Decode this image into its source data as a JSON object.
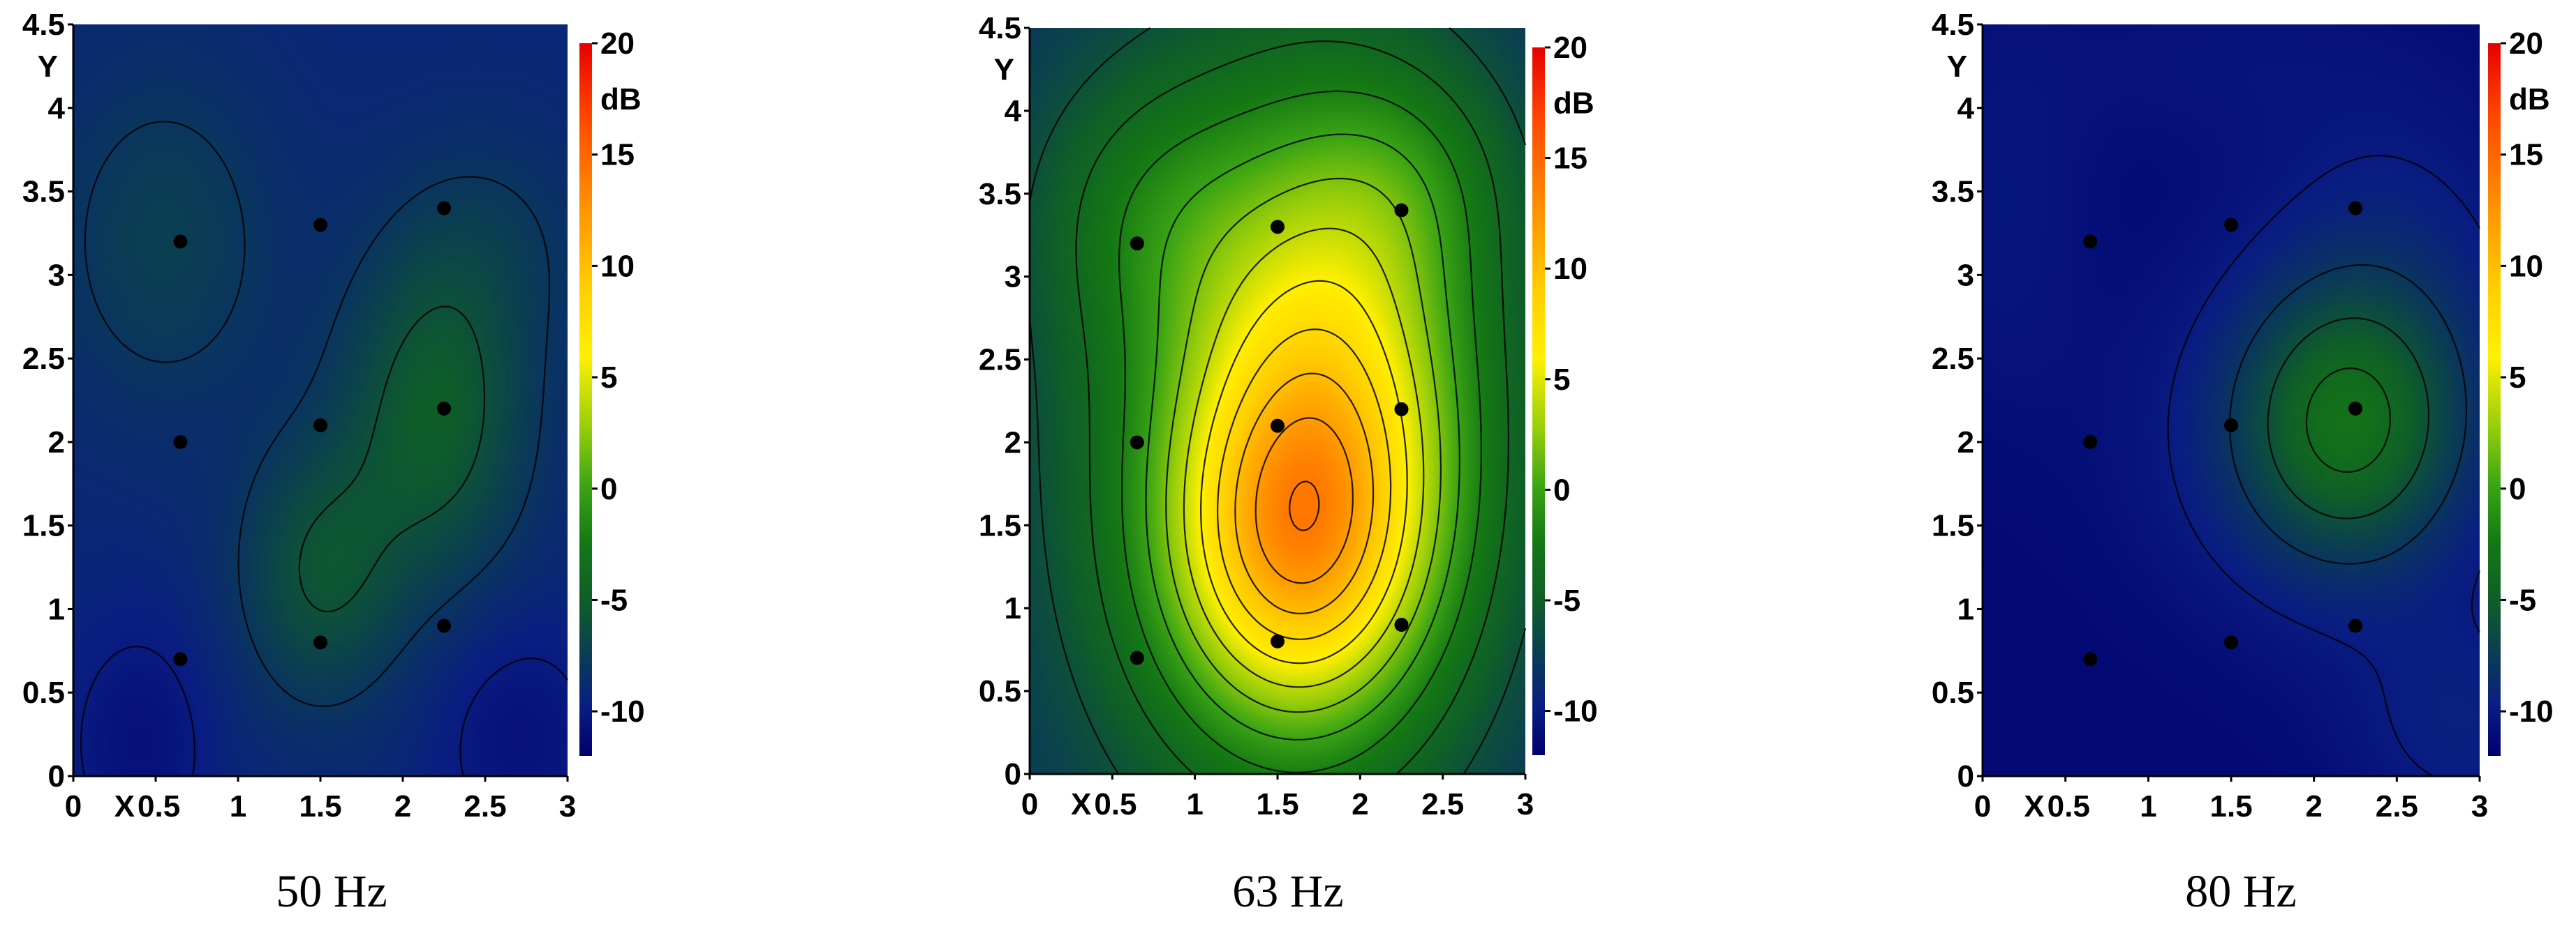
{
  "chart_data": [
    {
      "type": "heatmap",
      "title": "",
      "caption": "50 Hz",
      "xlabel": "X",
      "ylabel": "Y",
      "colorbar_label": "dB",
      "xlim": [
        0,
        3
      ],
      "ylim": [
        0,
        4.5
      ],
      "x_ticks": [
        "0",
        "0.5",
        "1",
        "1.5",
        "2",
        "2.5",
        "3"
      ],
      "y_ticks": [
        "0",
        "0.5",
        "1",
        "1.5",
        "2",
        "2.5",
        "3",
        "3.5",
        "4",
        "4.5"
      ],
      "colorbar_range": [
        -12,
        20
      ],
      "colorbar_ticks": [
        "-10",
        "-5",
        "0",
        "5",
        "10",
        "15",
        "20"
      ],
      "contour_interval_db": 2,
      "measurement_points": [
        {
          "x": 0.65,
          "y": 3.2
        },
        {
          "x": 1.5,
          "y": 3.3
        },
        {
          "x": 2.25,
          "y": 3.4
        },
        {
          "x": 0.65,
          "y": 2.0
        },
        {
          "x": 1.5,
          "y": 2.1
        },
        {
          "x": 2.25,
          "y": 2.2
        },
        {
          "x": 0.65,
          "y": 0.7
        },
        {
          "x": 1.5,
          "y": 0.8
        },
        {
          "x": 2.25,
          "y": 0.9
        }
      ],
      "field": {
        "base": -9.2,
        "peaks": [
          {
            "x": 2.2,
            "y": 2.15,
            "amp": 4.0,
            "sx": 0.4,
            "sy": 0.7
          },
          {
            "x": 1.5,
            "y": 1.2,
            "amp": 3.2,
            "sx": 0.35,
            "sy": 0.55
          },
          {
            "x": 0.55,
            "y": 3.2,
            "amp": 1.9,
            "sx": 0.5,
            "sy": 0.75
          },
          {
            "x": 2.55,
            "y": 3.2,
            "amp": 1.1,
            "sx": 0.45,
            "sy": 0.5
          },
          {
            "x": 0.4,
            "y": 0.2,
            "amp": -1.6,
            "sx": 0.3,
            "sy": 0.5
          },
          {
            "x": 2.7,
            "y": 0.25,
            "amp": -1.5,
            "sx": 0.35,
            "sy": 0.5
          }
        ]
      }
    },
    {
      "type": "heatmap",
      "title": "",
      "caption": "63 Hz",
      "xlabel": "X",
      "ylabel": "Y",
      "colorbar_label": "dB",
      "xlim": [
        0,
        3
      ],
      "ylim": [
        0,
        4.5
      ],
      "x_ticks": [
        "0",
        "0.5",
        "1",
        "1.5",
        "2",
        "2.5",
        "3"
      ],
      "y_ticks": [
        "0",
        "0.5",
        "1",
        "1.5",
        "2",
        "2.5",
        "3",
        "3.5",
        "4",
        "4.5"
      ],
      "colorbar_range": [
        -12,
        20
      ],
      "colorbar_ticks": [
        "-10",
        "-5",
        "0",
        "5",
        "10",
        "15",
        "20"
      ],
      "contour_interval_db": 2,
      "measurement_points": [
        {
          "x": 0.65,
          "y": 3.2
        },
        {
          "x": 1.5,
          "y": 3.3
        },
        {
          "x": 2.25,
          "y": 3.4
        },
        {
          "x": 0.65,
          "y": 2.0
        },
        {
          "x": 1.5,
          "y": 2.1
        },
        {
          "x": 2.25,
          "y": 2.2
        },
        {
          "x": 0.65,
          "y": 0.7
        },
        {
          "x": 1.5,
          "y": 0.8
        },
        {
          "x": 2.25,
          "y": 0.9
        }
      ],
      "field": {
        "base": -8.5,
        "peaks": [
          {
            "x": 1.6,
            "y": 1.35,
            "amp": 10.5,
            "sx": 0.55,
            "sy": 0.75
          },
          {
            "x": 1.85,
            "y": 2.4,
            "amp": 8.2,
            "sx": 0.6,
            "sy": 1.15
          },
          {
            "x": 1.5,
            "y": 2.0,
            "amp": 7.0,
            "sx": 0.95,
            "sy": 1.7
          },
          {
            "x": 0.7,
            "y": 3.4,
            "amp": 2.8,
            "sx": 0.5,
            "sy": 0.6
          },
          {
            "x": 2.35,
            "y": 3.6,
            "amp": 2.2,
            "sx": 0.45,
            "sy": 0.5
          }
        ]
      }
    },
    {
      "type": "heatmap",
      "title": "",
      "caption": "80 Hz",
      "xlabel": "X",
      "ylabel": "Y",
      "colorbar_label": "dB",
      "xlim": [
        0,
        3
      ],
      "ylim": [
        0,
        4.5
      ],
      "x_ticks": [
        "0",
        "0.5",
        "1",
        "1.5",
        "2",
        "2.5",
        "3"
      ],
      "y_ticks": [
        "0",
        "0.5",
        "1",
        "1.5",
        "2",
        "2.5",
        "3",
        "3.5",
        "4",
        "4.5"
      ],
      "colorbar_range": [
        -12,
        20
      ],
      "colorbar_ticks": [
        "-10",
        "-5",
        "0",
        "5",
        "10",
        "15",
        "20"
      ],
      "contour_interval_db": 2,
      "measurement_points": [
        {
          "x": 0.65,
          "y": 3.2
        },
        {
          "x": 1.5,
          "y": 3.3
        },
        {
          "x": 2.25,
          "y": 3.4
        },
        {
          "x": 0.65,
          "y": 2.0
        },
        {
          "x": 1.5,
          "y": 2.1
        },
        {
          "x": 2.25,
          "y": 2.2
        },
        {
          "x": 0.65,
          "y": 0.7
        },
        {
          "x": 1.5,
          "y": 0.8
        },
        {
          "x": 2.25,
          "y": 0.9
        }
      ],
      "field": {
        "base": -11.4,
        "peaks": [
          {
            "x": 2.2,
            "y": 2.1,
            "amp": 5.6,
            "sx": 0.45,
            "sy": 0.55
          },
          {
            "x": 2.05,
            "y": 2.0,
            "amp": 2.0,
            "sx": 0.8,
            "sy": 0.8
          },
          {
            "x": 2.5,
            "y": 3.0,
            "amp": 1.5,
            "sx": 0.6,
            "sy": 0.9
          },
          {
            "x": 2.9,
            "y": 0.3,
            "amp": 1.7,
            "sx": 0.5,
            "sy": 0.5
          },
          {
            "x": 0.1,
            "y": 3.4,
            "amp": 1.0,
            "sx": 0.4,
            "sy": 0.9
          },
          {
            "x": 1.3,
            "y": 4.3,
            "amp": 0.7,
            "sx": 0.7,
            "sy": 0.4
          }
        ]
      }
    }
  ]
}
